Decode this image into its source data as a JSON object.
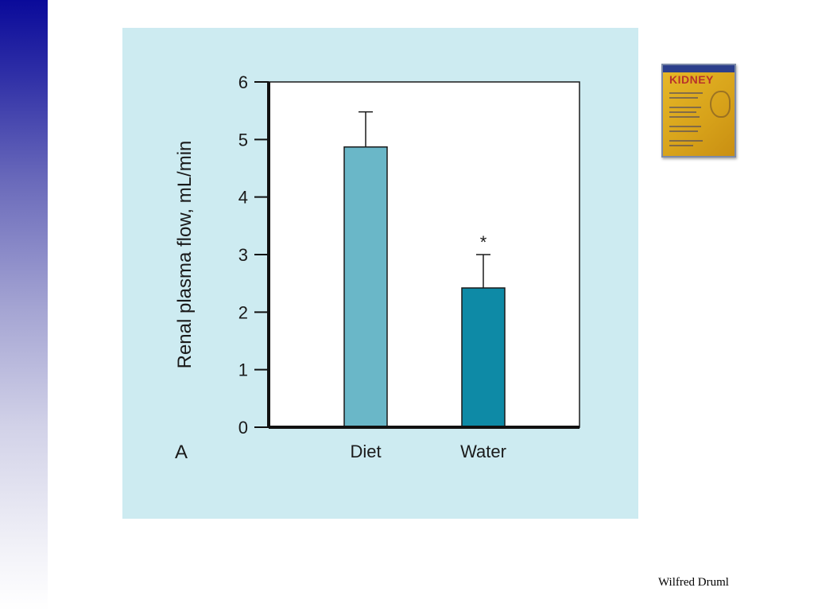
{
  "chart_data": {
    "type": "bar",
    "categories": [
      "Diet",
      "Water"
    ],
    "values": [
      4.87,
      2.42
    ],
    "errors": [
      0.61,
      0.58
    ],
    "annotations": [
      {
        "category": "Water",
        "text": "*"
      }
    ],
    "ylabel": "Renal plasma flow, mL/min",
    "xlabel": "",
    "ylim": [
      0,
      6
    ],
    "yticks": [
      "0",
      "1",
      "2",
      "3",
      "4",
      "5",
      "6"
    ],
    "panel_label": "A",
    "colors": [
      "#6ab7c8",
      "#0e8aa6"
    ],
    "grid": false
  },
  "footer": {
    "author": "Wilfred Druml"
  },
  "book": {
    "title": "KIDNEY"
  }
}
